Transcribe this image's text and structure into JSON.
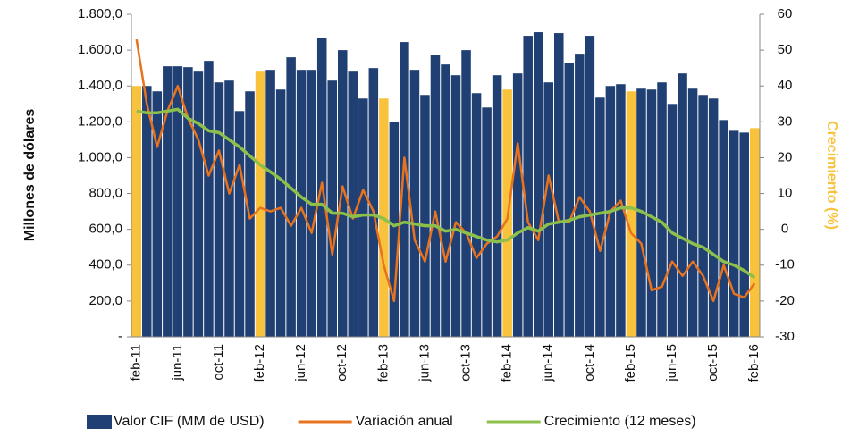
{
  "chart_data": {
    "type": "bar",
    "ylabel": "Millones de dólares",
    "y2label": "Crecimiento (%)",
    "y2label_color": "#f9c23c",
    "legend": "bottom",
    "categories": [
      "feb-11",
      null,
      null,
      null,
      "jun-11",
      null,
      null,
      null,
      "oct-11",
      null,
      null,
      null,
      "feb-12",
      null,
      null,
      null,
      "jun-12",
      null,
      null,
      null,
      "oct-12",
      null,
      null,
      null,
      "feb-13",
      null,
      null,
      null,
      "jun-13",
      null,
      null,
      null,
      "oct-13",
      null,
      null,
      null,
      "feb-14",
      null,
      null,
      null,
      "jun-14",
      null,
      null,
      null,
      "oct-14",
      null,
      null,
      null,
      "feb-15",
      null,
      null,
      null,
      "jun-15",
      null,
      null,
      null,
      "oct-15",
      null,
      null,
      null,
      "feb-16"
    ],
    "ylim": [
      0,
      1800
    ],
    "yticks": [
      {
        "value": 0,
        "label": "-"
      },
      {
        "value": 200,
        "label": "200,0"
      },
      {
        "value": 400,
        "label": "400,0"
      },
      {
        "value": 600,
        "label": "600,0"
      },
      {
        "value": 800,
        "label": "800,0"
      },
      {
        "value": 1000,
        "label": "1.000,0"
      },
      {
        "value": 1200,
        "label": "1.200,0"
      },
      {
        "value": 1400,
        "label": "1.400,0"
      },
      {
        "value": 1600,
        "label": "1.600,0"
      },
      {
        "value": 1800,
        "label": "1.800,0"
      }
    ],
    "y2lim": [
      -30,
      60
    ],
    "y2ticks": [
      -30,
      -20,
      -10,
      0,
      10,
      20,
      30,
      40,
      50,
      60
    ],
    "series": [
      {
        "name": "Valor CIF (MM de USD)",
        "type": "bar",
        "color": "#203f72",
        "colors": [
          "#f9c23c",
          "#203f72",
          "#203f72",
          "#203f72",
          "#203f72",
          "#203f72",
          "#203f72",
          "#203f72",
          "#203f72",
          "#203f72",
          "#203f72",
          "#203f72",
          "#f9c23c",
          "#203f72",
          "#203f72",
          "#203f72",
          "#203f72",
          "#203f72",
          "#203f72",
          "#203f72",
          "#203f72",
          "#203f72",
          "#203f72",
          "#203f72",
          "#f9c23c",
          "#203f72",
          "#203f72",
          "#203f72",
          "#203f72",
          "#203f72",
          "#203f72",
          "#203f72",
          "#203f72",
          "#203f72",
          "#203f72",
          "#203f72",
          "#f9c23c",
          "#203f72",
          "#203f72",
          "#203f72",
          "#203f72",
          "#203f72",
          "#203f72",
          "#203f72",
          "#203f72",
          "#203f72",
          "#203f72",
          "#203f72",
          "#f9c23c",
          "#203f72",
          "#203f72",
          "#203f72",
          "#203f72",
          "#203f72",
          "#203f72",
          "#203f72",
          "#203f72",
          "#203f72",
          "#203f72",
          "#203f72",
          "#f9c23c"
        ],
        "values": [
          1400,
          1400,
          1370,
          1510,
          1510,
          1505,
          1480,
          1540,
          1420,
          1430,
          1260,
          1370,
          1480,
          1490,
          1380,
          1560,
          1490,
          1490,
          1670,
          1430,
          1600,
          1480,
          1330,
          1500,
          1330,
          1200,
          1645,
          1490,
          1350,
          1575,
          1520,
          1460,
          1600,
          1360,
          1280,
          1460,
          1380,
          1470,
          1680,
          1700,
          1420,
          1695,
          1530,
          1580,
          1680,
          1335,
          1400,
          1410,
          1370,
          1385,
          1380,
          1420,
          1300,
          1470,
          1385,
          1350,
          1330,
          1210,
          1150,
          1140,
          1165
        ]
      },
      {
        "name": "Variación anual",
        "type": "line",
        "axis": "y2",
        "color": "#e8731e",
        "values": [
          53,
          35,
          23,
          33,
          40,
          31,
          25,
          15,
          22,
          10,
          18,
          3,
          6,
          5,
          6,
          1,
          6,
          -1,
          13,
          -7,
          12,
          3,
          11,
          5,
          -10,
          -20,
          20,
          -3,
          -9,
          5,
          -9,
          2,
          -1,
          -8,
          -4,
          -2,
          3,
          24,
          2,
          -3,
          15,
          2,
          2,
          9,
          5,
          -6,
          5,
          8,
          -1,
          -4,
          -17,
          -16,
          -9,
          -13,
          -9,
          -13,
          -20,
          -10,
          -18,
          -19,
          -15
        ]
      },
      {
        "name": "Crecimiento (12 meses)",
        "type": "line",
        "axis": "y2",
        "color": "#8dc04b",
        "values": [
          33,
          32.5,
          32.5,
          33,
          33.5,
          31,
          29.5,
          27.5,
          27,
          25,
          23,
          20.5,
          18,
          16,
          14,
          11.5,
          9,
          7,
          7,
          4.5,
          4.5,
          3.5,
          4,
          4,
          3,
          1,
          2,
          1.5,
          1,
          1,
          -0.5,
          0,
          -1,
          -2,
          -3,
          -3.5,
          -3,
          -1,
          0.5,
          -0.5,
          1.5,
          2,
          2.5,
          3.5,
          4,
          4.5,
          5,
          6,
          6,
          5,
          3.5,
          2,
          -1,
          -2.5,
          -4,
          -5,
          -7,
          -9,
          -10,
          -11.5,
          -13.5
        ]
      }
    ]
  }
}
